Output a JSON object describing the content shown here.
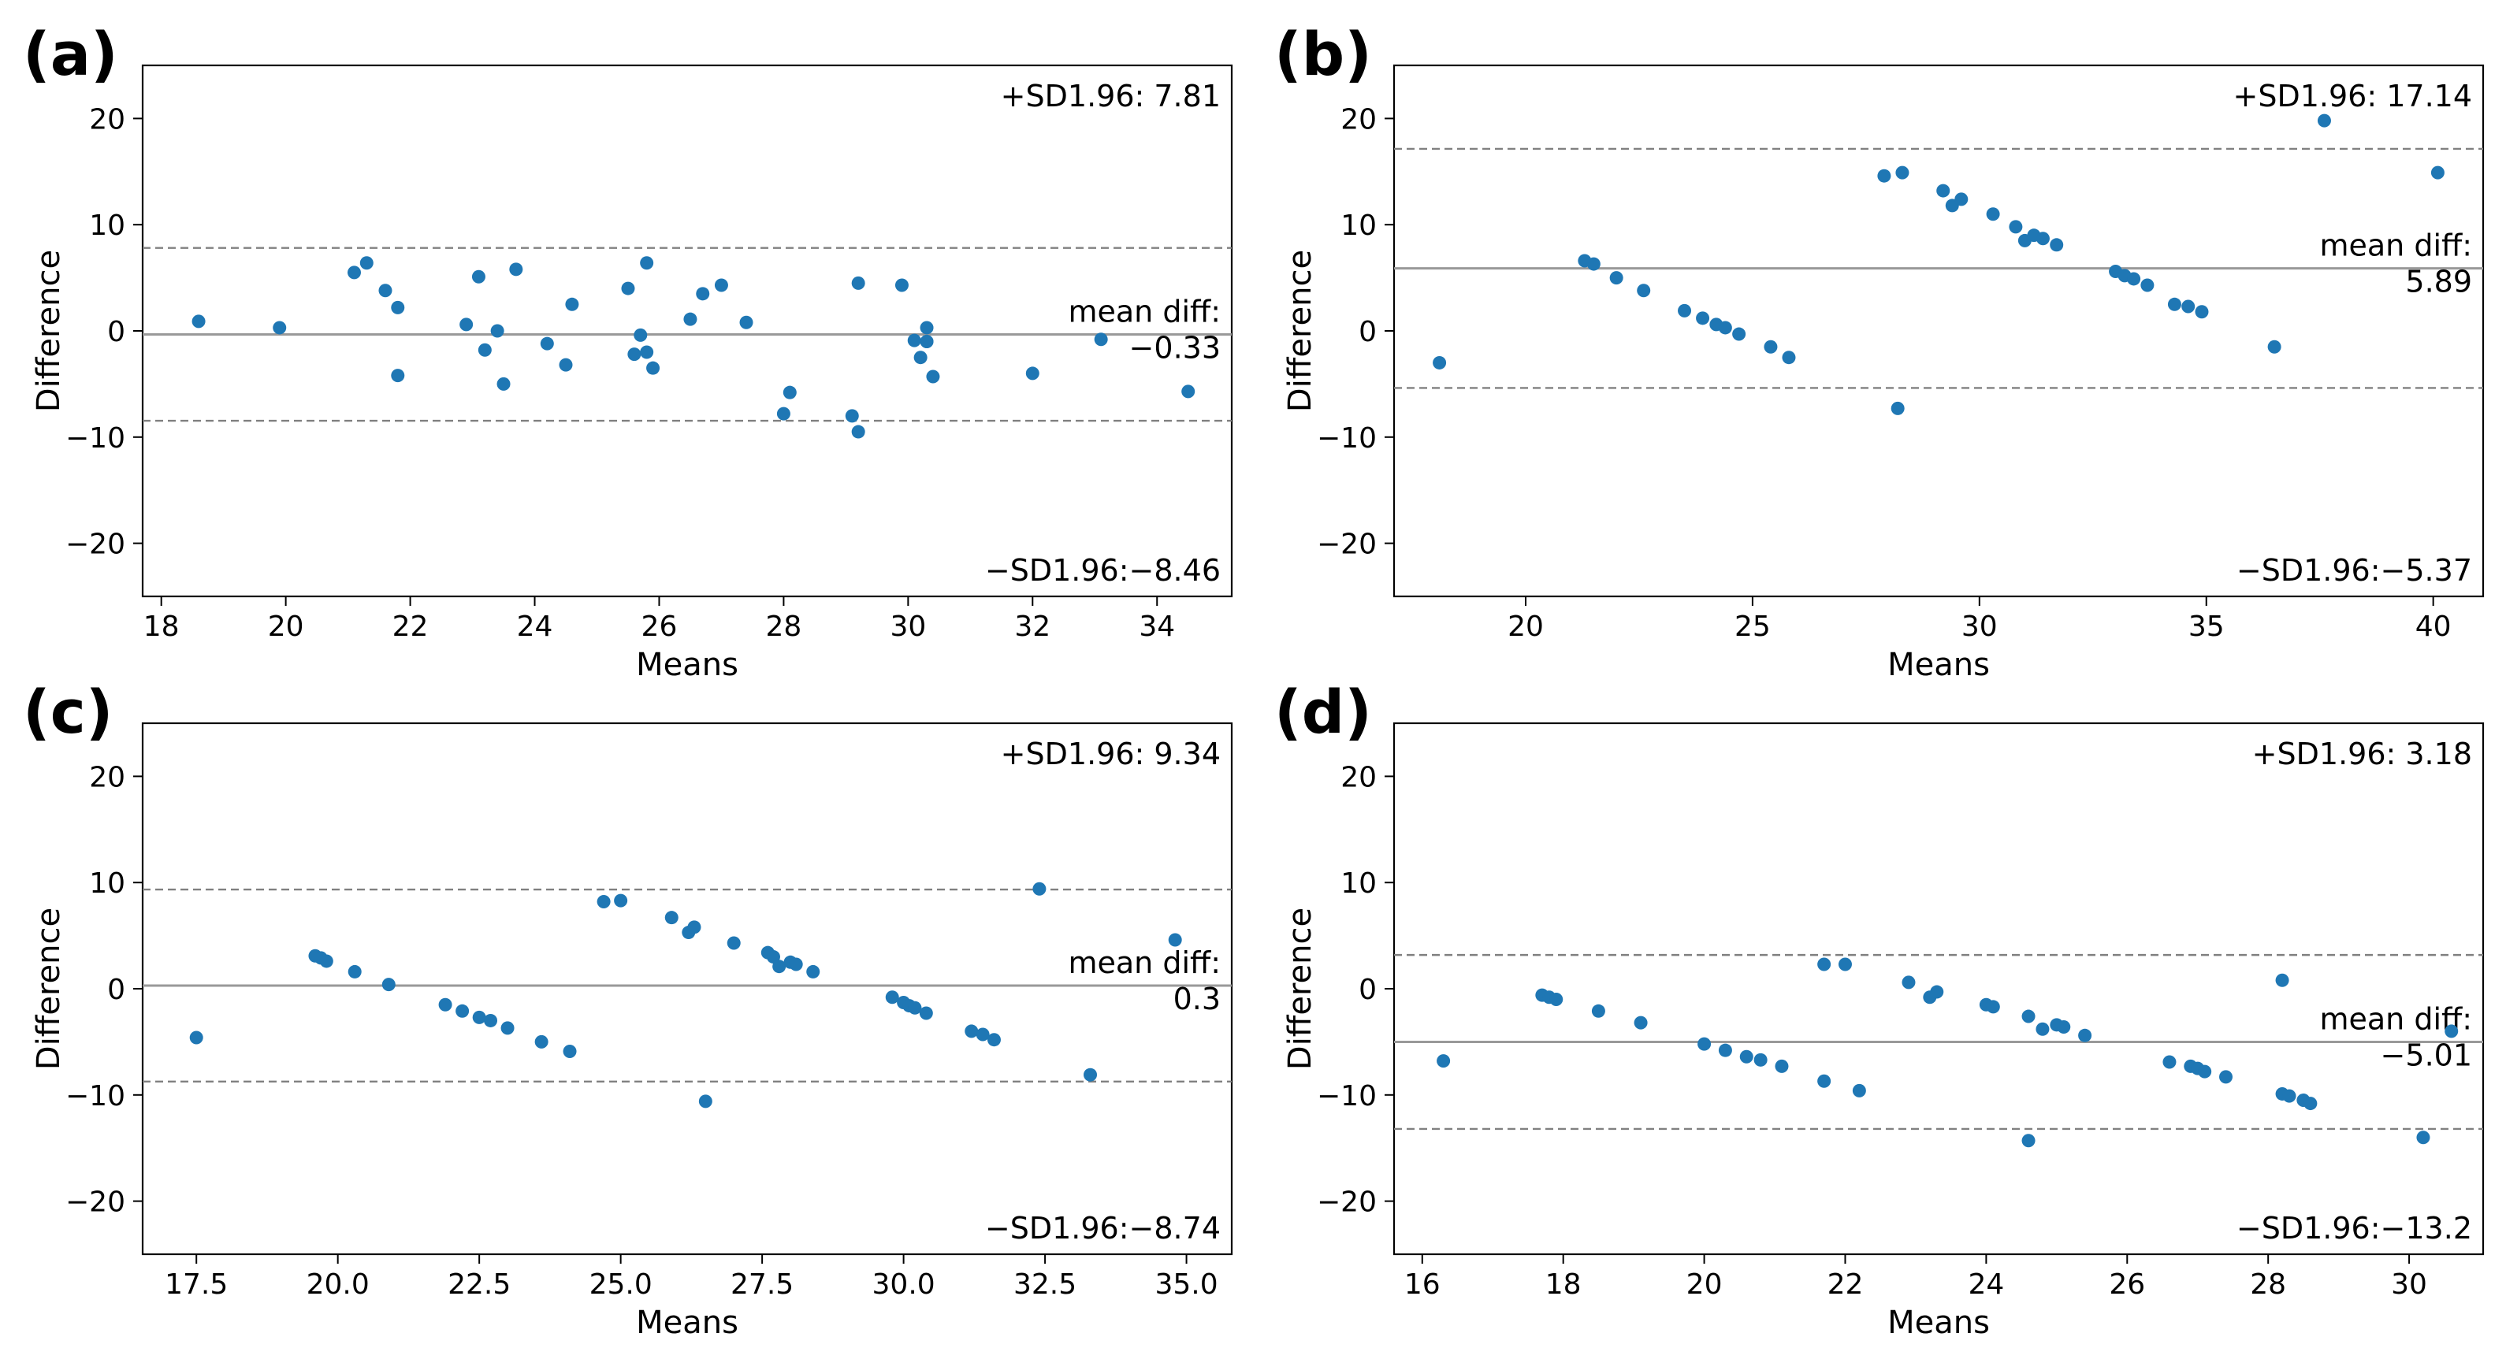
{
  "chart_data": [
    {
      "type": "scatter",
      "panel_label": "(a)",
      "xlabel": "Means",
      "ylabel": "Difference",
      "xlim": [
        17.7,
        35.2
      ],
      "ylim": [
        -25,
        25
      ],
      "xticks": [
        18,
        20,
        22,
        24,
        26,
        28,
        30,
        32,
        34
      ],
      "xtick_labels": [
        "18",
        "20",
        "22",
        "24",
        "26",
        "28",
        "30",
        "32",
        "34"
      ],
      "yticks": [
        20,
        10,
        0,
        -10,
        -20
      ],
      "ytick_labels": [
        "20",
        "10",
        "0",
        "−10",
        "−20"
      ],
      "mean_diff": -0.33,
      "upper_loa": 7.81,
      "lower_loa": -8.46,
      "upper_text": "+SD1.96: 7.81",
      "mean_text_1": "mean diff:",
      "mean_text_2": "−0.33",
      "lower_text": "−SD1.96:−8.46",
      "x": [
        18.6,
        19.9,
        21.1,
        21.3,
        21.6,
        21.8,
        21.8,
        22.9,
        23.1,
        23.2,
        23.4,
        23.5,
        23.7,
        24.2,
        24.5,
        24.6,
        25.5,
        25.6,
        25.7,
        25.8,
        25.9,
        25.8,
        26.5,
        26.7,
        27.0,
        27.4,
        28.0,
        28.1,
        29.1,
        29.2,
        29.2,
        29.9,
        30.1,
        30.2,
        30.3,
        30.3,
        30.4,
        30.3,
        32.0,
        33.1,
        34.5
      ],
      "y": [
        0.9,
        0.3,
        5.5,
        6.4,
        3.8,
        2.2,
        -4.2,
        0.6,
        5.1,
        -1.8,
        0.0,
        -5.0,
        5.8,
        -1.2,
        -3.2,
        2.5,
        4.0,
        -2.2,
        -0.4,
        6.4,
        -3.5,
        -2.0,
        1.1,
        3.5,
        4.3,
        0.8,
        -7.8,
        -5.8,
        -8.0,
        -9.5,
        4.5,
        4.3,
        -0.9,
        -2.5,
        0.3,
        -1.0,
        -4.3,
        -1.0,
        -4.0,
        -0.8,
        -5.7
      ]
    },
    {
      "type": "scatter",
      "panel_label": "(b)",
      "xlabel": "Means",
      "ylabel": "Difference",
      "xlim": [
        17.1,
        41.1
      ],
      "ylim": [
        -25,
        25
      ],
      "xticks": [
        20,
        25,
        30,
        35,
        40
      ],
      "xtick_labels": [
        "20",
        "25",
        "30",
        "35",
        "40"
      ],
      "yticks": [
        20,
        10,
        0,
        -10,
        -20
      ],
      "ytick_labels": [
        "20",
        "10",
        "0",
        "−10",
        "−20"
      ],
      "mean_diff": 5.89,
      "upper_loa": 17.14,
      "lower_loa": -5.37,
      "upper_text": "+SD1.96: 17.14",
      "mean_text_1": "mean diff:",
      "mean_text_2": "5.89",
      "lower_text": "−SD1.96:−5.37",
      "x": [
        18.1,
        21.3,
        21.5,
        22.0,
        22.6,
        23.5,
        23.9,
        24.2,
        24.4,
        24.7,
        25.4,
        25.8,
        27.9,
        28.2,
        28.3,
        29.2,
        29.4,
        29.6,
        30.3,
        30.8,
        31.0,
        31.2,
        31.4,
        31.7,
        33.0,
        33.2,
        33.4,
        33.7,
        34.3,
        34.6,
        34.9,
        36.5,
        37.6,
        40.1
      ],
      "y": [
        -3.0,
        6.6,
        6.3,
        5.0,
        3.8,
        1.9,
        1.2,
        0.6,
        0.3,
        -0.3,
        -1.5,
        -2.5,
        14.6,
        -7.3,
        14.9,
        13.2,
        11.8,
        12.4,
        11.0,
        9.8,
        8.5,
        9.0,
        8.7,
        8.1,
        5.6,
        5.2,
        4.9,
        4.3,
        2.5,
        2.3,
        1.8,
        -1.5,
        19.8,
        14.9
      ]
    },
    {
      "type": "scatter",
      "panel_label": "(c)",
      "xlabel": "Means",
      "ylabel": "Difference",
      "xlim": [
        16.55,
        35.8
      ],
      "ylim": [
        -25,
        25
      ],
      "xticks": [
        17.5,
        20.0,
        22.5,
        25.0,
        27.5,
        30.0,
        32.5,
        35.0
      ],
      "xtick_labels": [
        "17.5",
        "20.0",
        "22.5",
        "25.0",
        "27.5",
        "30.0",
        "32.5",
        "35.0"
      ],
      "yticks": [
        20,
        10,
        0,
        -10,
        -20
      ],
      "ytick_labels": [
        "20",
        "10",
        "0",
        "−10",
        "−20"
      ],
      "mean_diff": 0.3,
      "upper_loa": 9.34,
      "lower_loa": -8.74,
      "upper_text": "+SD1.96: 9.34",
      "mean_text_1": "mean diff:",
      "mean_text_2": "0.3",
      "lower_text": "−SD1.96:−8.74",
      "x": [
        17.5,
        19.6,
        19.7,
        19.8,
        20.3,
        20.9,
        21.9,
        22.2,
        22.5,
        22.7,
        23.0,
        23.6,
        24.1,
        24.7,
        25.0,
        25.9,
        26.2,
        26.3,
        26.5,
        27.0,
        27.6,
        27.7,
        27.8,
        28.0,
        28.1,
        28.4,
        29.8,
        30.0,
        30.1,
        30.2,
        30.4,
        31.2,
        31.4,
        31.6,
        32.4,
        33.3,
        34.8
      ],
      "y": [
        -4.6,
        3.1,
        2.9,
        2.6,
        1.6,
        0.4,
        -1.5,
        -2.1,
        -2.7,
        -3.0,
        -3.7,
        -5.0,
        -5.9,
        8.2,
        8.3,
        6.7,
        5.3,
        5.8,
        -10.6,
        4.3,
        3.4,
        3.0,
        2.1,
        2.5,
        2.3,
        1.6,
        -0.8,
        -1.3,
        -1.6,
        -1.8,
        -2.3,
        -4.0,
        -4.3,
        -4.8,
        9.4,
        -8.1,
        4.6
      ]
    },
    {
      "type": "scatter",
      "panel_label": "(d)",
      "xlabel": "Means",
      "ylabel": "Difference",
      "xlim": [
        15.6,
        31.05
      ],
      "ylim": [
        -25,
        25
      ],
      "xticks": [
        16,
        18,
        20,
        22,
        24,
        26,
        28,
        30
      ],
      "xtick_labels": [
        "16",
        "18",
        "20",
        "22",
        "24",
        "26",
        "28",
        "30"
      ],
      "yticks": [
        20,
        10,
        0,
        -10,
        -20
      ],
      "ytick_labels": [
        "20",
        "10",
        "0",
        "−10",
        "−20"
      ],
      "mean_diff": -5.01,
      "upper_loa": 3.18,
      "lower_loa": -13.2,
      "upper_text": "+SD1.96: 3.18",
      "mean_text_1": "mean diff:",
      "mean_text_2": "−5.01",
      "lower_text": "−SD1.96:−13.2",
      "x": [
        16.3,
        17.7,
        17.8,
        17.9,
        18.5,
        19.1,
        20.0,
        20.3,
        20.6,
        20.8,
        21.1,
        21.7,
        21.7,
        22.0,
        22.2,
        22.9,
        23.2,
        23.3,
        24.0,
        24.1,
        24.6,
        24.6,
        24.8,
        25.0,
        25.1,
        25.4,
        26.6,
        26.9,
        27.0,
        27.1,
        27.4,
        28.2,
        28.2,
        28.3,
        28.5,
        28.6,
        30.2,
        30.6
      ],
      "y": [
        -6.8,
        -0.6,
        -0.8,
        -1.0,
        -2.1,
        -3.2,
        -5.2,
        -5.8,
        -6.4,
        -6.7,
        -7.3,
        2.3,
        -8.7,
        2.3,
        -9.6,
        0.6,
        -0.8,
        -0.3,
        -1.5,
        -1.7,
        -2.6,
        -14.3,
        -3.8,
        -3.4,
        -3.6,
        -4.4,
        -6.9,
        -7.3,
        -7.5,
        -7.8,
        -8.3,
        0.8,
        -9.9,
        -10.1,
        -10.5,
        -10.8,
        -14.0,
        -4.0
      ]
    }
  ],
  "colors": {
    "marker": "#1f77b4",
    "mean_line": "#999999",
    "loa_line": "#808080",
    "axes": "#000000",
    "text": "#000000"
  }
}
